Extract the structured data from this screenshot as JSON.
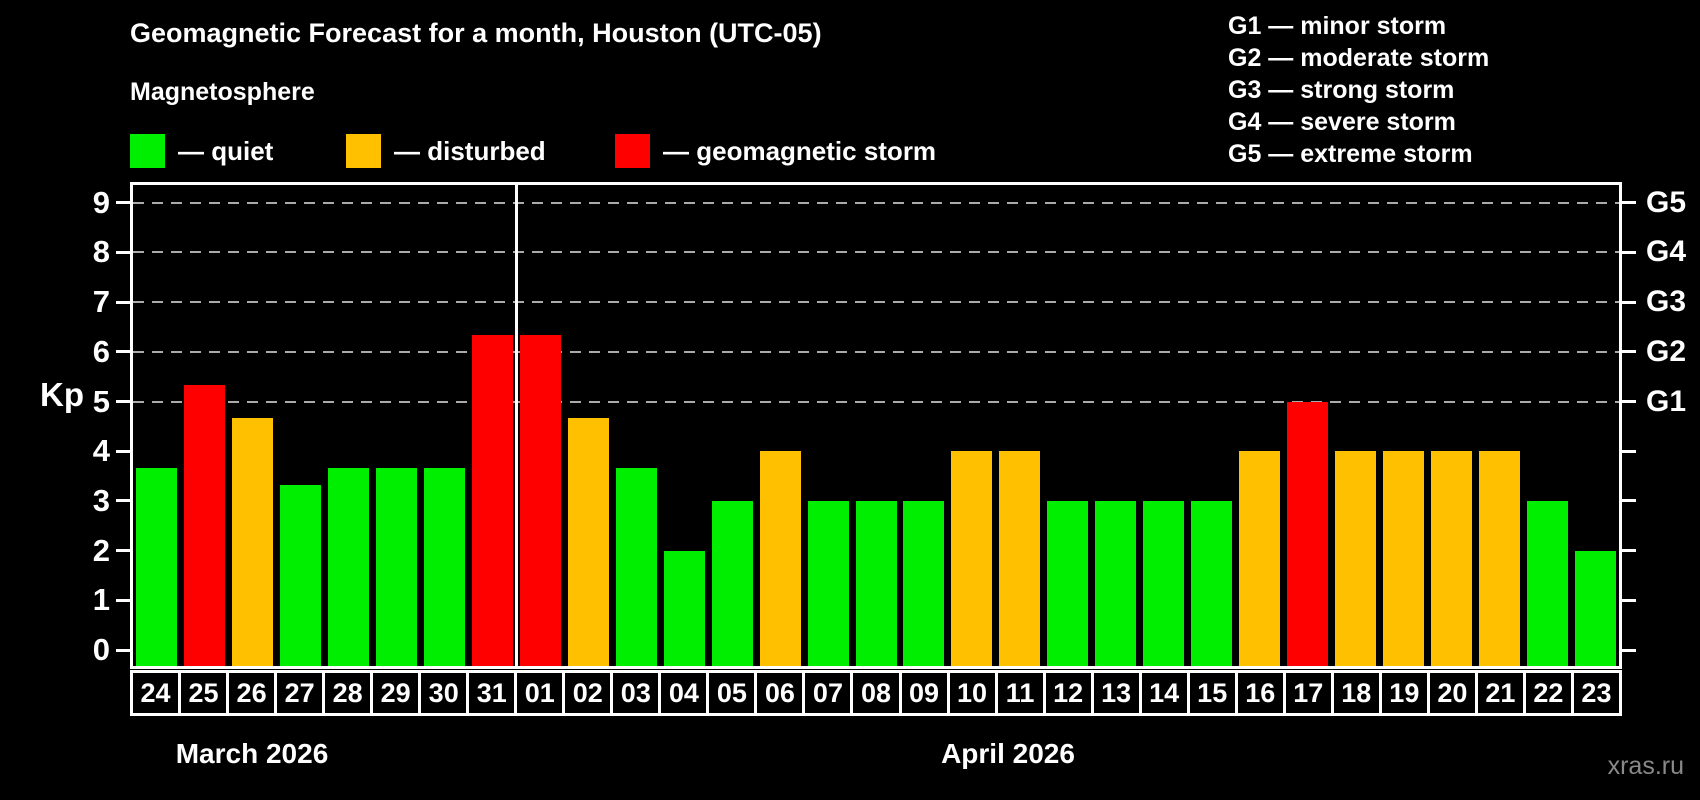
{
  "title": "Geomagnetic Forecast for a month, Houston (UTC-05)",
  "subtitle": "Magnetosphere",
  "activity_legend": [
    {
      "status": "quiet",
      "label": "— quiet",
      "color": "#00ee00"
    },
    {
      "status": "disturbed",
      "label": "— disturbed",
      "color": "#ffc000"
    },
    {
      "status": "storm",
      "label": "— geomagnetic storm",
      "color": "#ff0000"
    }
  ],
  "storm_scale_legend": [
    "G1 — minor storm",
    "G2 — moderate storm",
    "G3 — strong storm",
    "G4 — severe storm",
    "G5 — extreme storm"
  ],
  "watermark": "xras.ru",
  "chart_data": {
    "type": "bar",
    "ylabel": "Kp",
    "ylim": [
      0,
      9
    ],
    "yticks": [
      0,
      1,
      2,
      3,
      4,
      5,
      6,
      7,
      8,
      9
    ],
    "gridlines_at": [
      5,
      6,
      7,
      8,
      9
    ],
    "grid_style": "dashed",
    "legend_position": "top",
    "right_axis_labels": [
      {
        "kp": 5,
        "label": "G1"
      },
      {
        "kp": 6,
        "label": "G2"
      },
      {
        "kp": 7,
        "label": "G3"
      },
      {
        "kp": 8,
        "label": "G4"
      },
      {
        "kp": 9,
        "label": "G5"
      }
    ],
    "months": [
      {
        "name": "March 2026",
        "days": 8
      },
      {
        "name": "April 2026",
        "days": 23
      }
    ],
    "bars": [
      {
        "day": "24",
        "kp": 3.67,
        "status": "quiet"
      },
      {
        "day": "25",
        "kp": 5.33,
        "status": "storm"
      },
      {
        "day": "26",
        "kp": 4.67,
        "status": "disturbed"
      },
      {
        "day": "27",
        "kp": 3.33,
        "status": "quiet"
      },
      {
        "day": "28",
        "kp": 3.67,
        "status": "quiet"
      },
      {
        "day": "29",
        "kp": 3.67,
        "status": "quiet"
      },
      {
        "day": "30",
        "kp": 3.67,
        "status": "quiet"
      },
      {
        "day": "31",
        "kp": 6.33,
        "status": "storm"
      },
      {
        "day": "01",
        "kp": 6.33,
        "status": "storm"
      },
      {
        "day": "02",
        "kp": 4.67,
        "status": "disturbed"
      },
      {
        "day": "03",
        "kp": 3.67,
        "status": "quiet"
      },
      {
        "day": "04",
        "kp": 2,
        "status": "quiet"
      },
      {
        "day": "05",
        "kp": 3,
        "status": "quiet"
      },
      {
        "day": "06",
        "kp": 4,
        "status": "disturbed"
      },
      {
        "day": "07",
        "kp": 3,
        "status": "quiet"
      },
      {
        "day": "08",
        "kp": 3,
        "status": "quiet"
      },
      {
        "day": "09",
        "kp": 3,
        "status": "quiet"
      },
      {
        "day": "10",
        "kp": 4,
        "status": "disturbed"
      },
      {
        "day": "11",
        "kp": 4,
        "status": "disturbed"
      },
      {
        "day": "12",
        "kp": 3,
        "status": "quiet"
      },
      {
        "day": "13",
        "kp": 3,
        "status": "quiet"
      },
      {
        "day": "14",
        "kp": 3,
        "status": "quiet"
      },
      {
        "day": "15",
        "kp": 3,
        "status": "quiet"
      },
      {
        "day": "16",
        "kp": 4,
        "status": "disturbed"
      },
      {
        "day": "17",
        "kp": 5,
        "status": "storm"
      },
      {
        "day": "18",
        "kp": 4,
        "status": "disturbed"
      },
      {
        "day": "19",
        "kp": 4,
        "status": "disturbed"
      },
      {
        "day": "20",
        "kp": 4,
        "status": "disturbed"
      },
      {
        "day": "21",
        "kp": 4,
        "status": "disturbed"
      },
      {
        "day": "22",
        "kp": 3,
        "status": "quiet"
      },
      {
        "day": "23",
        "kp": 2,
        "status": "quiet"
      }
    ],
    "colors": {
      "quiet": "#00ee00",
      "disturbed": "#ffc000",
      "storm": "#ff0000",
      "grid": "#aaaaaa",
      "axis": "#ffffff",
      "watermark": "#8a8a8a",
      "background": "#000000"
    }
  }
}
